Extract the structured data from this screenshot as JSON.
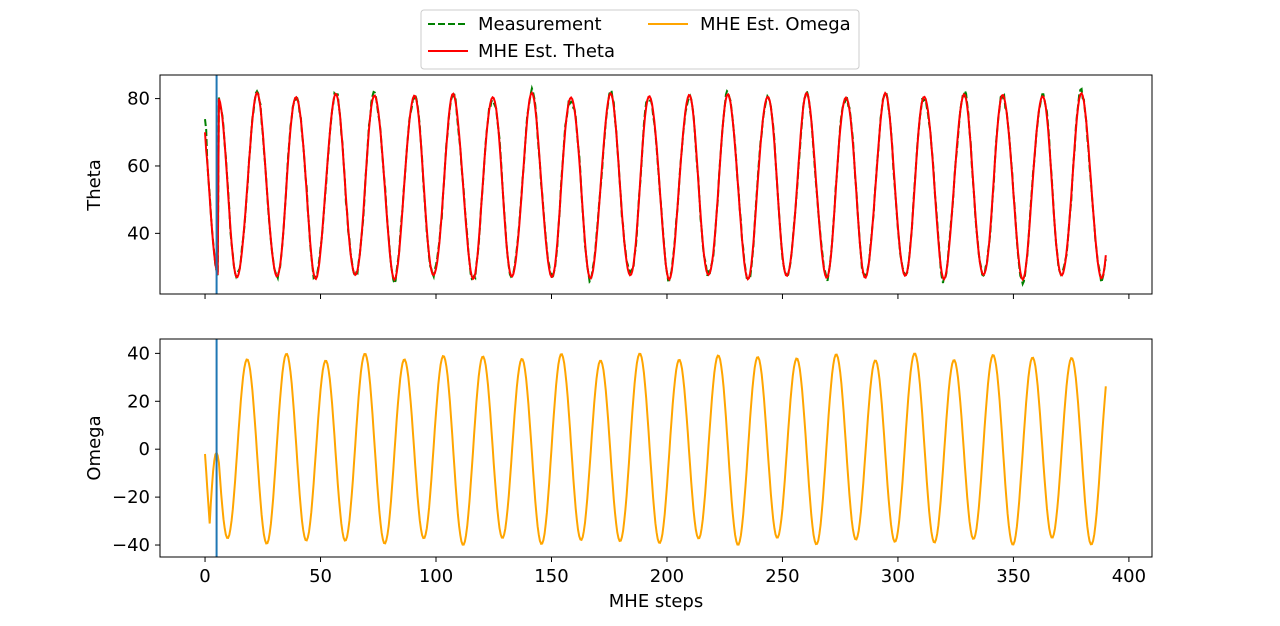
{
  "chart_data": [
    {
      "type": "line",
      "panel": "top",
      "ylabel": "Theta",
      "xlim": [
        -19.5,
        410
      ],
      "ylim": [
        22,
        87
      ],
      "xticks": [
        0,
        50,
        100,
        150,
        200,
        250,
        300,
        350,
        400
      ],
      "yticks": [
        40,
        60,
        80
      ],
      "ytick_labels": [
        "40",
        "60",
        "80"
      ],
      "vline_x": 5,
      "vline_color": "#1f77b4",
      "oscillation": {
        "start_step": 0,
        "end_step": 390,
        "period_steps": 17,
        "theta_max": 81,
        "theta_min": 27,
        "first_peak_step": 14
      },
      "series": [
        {
          "name": "Measurement",
          "style": "dashed",
          "color": "#008000"
        },
        {
          "name": "MHE Est. Theta",
          "style": "solid",
          "color": "#ff0000"
        }
      ]
    },
    {
      "type": "line",
      "panel": "bottom",
      "ylabel": "Omega",
      "xlabel": "MHE steps",
      "xlim": [
        -19.5,
        410
      ],
      "ylim": [
        -45,
        46
      ],
      "xticks": [
        0,
        50,
        100,
        150,
        200,
        250,
        300,
        350,
        400
      ],
      "xtick_labels": [
        "0",
        "50",
        "100",
        "150",
        "200",
        "250",
        "300",
        "350",
        "400"
      ],
      "yticks": [
        -40,
        -20,
        0,
        20,
        40
      ],
      "ytick_labels": [
        "−40",
        "−20",
        "0",
        "20",
        "40"
      ],
      "vline_x": 5,
      "vline_color": "#1f77b4",
      "oscillation": {
        "start_step": 0,
        "end_step": 390,
        "period_steps": 17,
        "amplitude": 38.5,
        "first_min_step": 2,
        "first_min_value": -31
      },
      "series": [
        {
          "name": "MHE Est. Omega",
          "style": "solid",
          "color": "#ffa500"
        }
      ]
    }
  ],
  "legend": {
    "placement": "top-center",
    "entries": [
      {
        "label": "Measurement",
        "style": "dashed",
        "color": "#008000"
      },
      {
        "label": "MHE Est. Omega",
        "style": "solid",
        "color": "#ffa500"
      },
      {
        "label": "MHE Est. Theta",
        "style": "solid",
        "color": "#ff0000"
      }
    ]
  }
}
